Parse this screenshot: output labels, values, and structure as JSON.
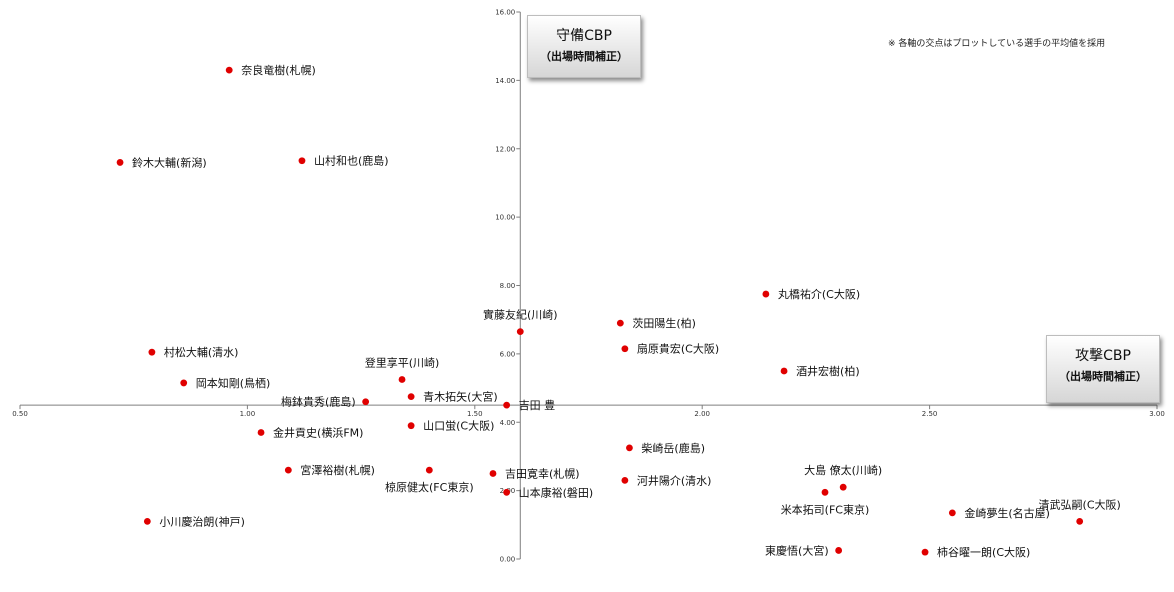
{
  "note": "※ 各軸の交点はプロットしている選手の平均値を採用",
  "y_axis_box": {
    "title": "守備CBP",
    "subtitle": "（出場時間補正）"
  },
  "x_axis_box": {
    "title": "攻撃CBP",
    "subtitle": "（出場時間補正）"
  },
  "chart_data": {
    "type": "scatter",
    "title": "",
    "xlabel": "攻撃CBP（出場時間補正）",
    "ylabel": "守備CBP（出場時間補正）",
    "xlim": [
      0.5,
      3.0
    ],
    "ylim": [
      0.0,
      16.0
    ],
    "crossing": {
      "x": 1.6,
      "y": 4.5
    },
    "x_ticks": [
      "0.50",
      "1.00",
      "1.50",
      "2.00",
      "2.50",
      "3.00"
    ],
    "y_ticks": [
      "0.00",
      "2.00",
      "4.00",
      "6.00",
      "8.00",
      "10.00",
      "12.00",
      "14.00",
      "16.00"
    ],
    "marker_color": "#e00000",
    "grid": false,
    "points": [
      {
        "label": "奈良竜樹(札幌)",
        "x": 0.96,
        "y": 14.3,
        "side": "right"
      },
      {
        "label": "鈴木大輔(新潟)",
        "x": 0.72,
        "y": 11.6,
        "side": "right"
      },
      {
        "label": "山村和也(鹿島)",
        "x": 1.12,
        "y": 11.65,
        "side": "right"
      },
      {
        "label": "丸橋祐介(C大阪)",
        "x": 2.14,
        "y": 7.75,
        "side": "right"
      },
      {
        "label": "實藤友紀(川崎)",
        "x": 1.6,
        "y": 6.65,
        "side": "above"
      },
      {
        "label": "茨田陽生(柏)",
        "x": 1.82,
        "y": 6.9,
        "side": "right"
      },
      {
        "label": "扇原貴宏(C大阪)",
        "x": 1.83,
        "y": 6.15,
        "side": "right"
      },
      {
        "label": "村松大輔(清水)",
        "x": 0.79,
        "y": 6.05,
        "side": "right"
      },
      {
        "label": "登里享平(川崎)",
        "x": 1.34,
        "y": 5.25,
        "side": "above"
      },
      {
        "label": "酒井宏樹(柏)",
        "x": 2.18,
        "y": 5.5,
        "side": "right"
      },
      {
        "label": "岡本知剛(鳥栖)",
        "x": 0.86,
        "y": 5.15,
        "side": "right"
      },
      {
        "label": "青木拓矢(大宮)",
        "x": 1.36,
        "y": 4.75,
        "side": "right"
      },
      {
        "label": "梅鉢貴秀(鹿島)",
        "x": 1.26,
        "y": 4.6,
        "side": "left"
      },
      {
        "label": "吉田 豊",
        "x": 1.57,
        "y": 4.5,
        "side": "right"
      },
      {
        "label": "山口蛍(C大阪)",
        "x": 1.36,
        "y": 3.9,
        "side": "right"
      },
      {
        "label": "金井貢史(横浜FM)",
        "x": 1.03,
        "y": 3.7,
        "side": "right"
      },
      {
        "label": "柴崎岳(鹿島)",
        "x": 1.84,
        "y": 3.25,
        "side": "right"
      },
      {
        "label": "大島 僚太(川崎)",
        "x": 2.31,
        "y": 2.1,
        "side": "above"
      },
      {
        "label": "宮澤裕樹(札幌)",
        "x": 1.09,
        "y": 2.6,
        "side": "right"
      },
      {
        "label": "椋原健太(FC東京)",
        "x": 1.4,
        "y": 2.6,
        "side": "below"
      },
      {
        "label": "吉田寛幸(札幌)",
        "x": 1.54,
        "y": 2.5,
        "side": "right"
      },
      {
        "label": "河井陽介(清水)",
        "x": 1.83,
        "y": 2.3,
        "side": "right"
      },
      {
        "label": "清武弘嗣(C大阪)",
        "x": 2.83,
        "y": 1.1,
        "side": "above"
      },
      {
        "label": "米本拓司(FC東京)",
        "x": 2.27,
        "y": 1.95,
        "side": "below"
      },
      {
        "label": "山本康裕(磐田)",
        "x": 1.57,
        "y": 1.95,
        "side": "right"
      },
      {
        "label": "金崎夢生(名古屋)",
        "x": 2.55,
        "y": 1.35,
        "side": "right"
      },
      {
        "label": "小川慶治朗(神戸)",
        "x": 0.78,
        "y": 1.1,
        "side": "right"
      },
      {
        "label": "東慶悟(大宮)",
        "x": 2.3,
        "y": 0.25,
        "side": "left"
      },
      {
        "label": "柿谷曜一朗(C大阪)",
        "x": 2.49,
        "y": 0.2,
        "side": "right"
      }
    ]
  }
}
